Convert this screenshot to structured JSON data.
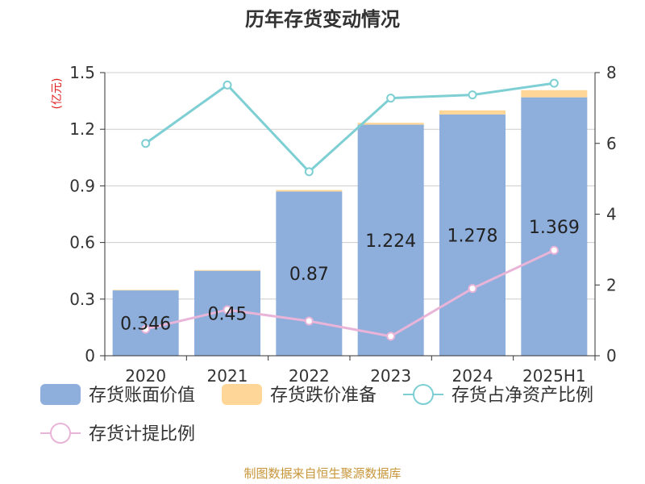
{
  "chart_data": {
    "type": "bar",
    "title": "历年存货变动情况",
    "categories": [
      "2020",
      "2021",
      "2022",
      "2023",
      "2024",
      "2025H1"
    ],
    "y_left": {
      "label": "(亿元)",
      "ticks": [
        "0",
        "0.3",
        "0.6",
        "0.9",
        "1.2",
        "1.5"
      ],
      "range": [
        0,
        1.5
      ]
    },
    "y_right": {
      "ticks": [
        "0",
        "2",
        "4",
        "6",
        "8"
      ],
      "range": [
        0,
        8
      ]
    },
    "series": [
      {
        "name": "存货账面价值",
        "type": "bar",
        "axis": "left",
        "stack": "inv",
        "color": "#8eaedc",
        "values": [
          0.346,
          0.45,
          0.87,
          1.224,
          1.278,
          1.369
        ],
        "labels": [
          "0.346",
          "0.45",
          "0.87",
          "1.224",
          "1.278",
          "1.369"
        ]
      },
      {
        "name": "存货跌价准备",
        "type": "bar",
        "axis": "left",
        "stack": "inv",
        "color": "#fdd698",
        "values": [
          0.003,
          0.004,
          0.008,
          0.01,
          0.022,
          0.038
        ]
      },
      {
        "name": "存货占净资产比例",
        "type": "line",
        "axis": "right",
        "color": "#7dcfd3",
        "values": [
          6.0,
          7.65,
          5.2,
          7.28,
          7.37,
          7.7
        ]
      },
      {
        "name": "存货计提比例",
        "type": "line",
        "axis": "right",
        "color": "#e8b4d8",
        "values": [
          0.75,
          1.3,
          0.98,
          0.55,
          1.9,
          2.98
        ]
      }
    ],
    "grid": true,
    "legend_position": "bottom"
  },
  "source_text": "制图数据来自恒生聚源数据库"
}
